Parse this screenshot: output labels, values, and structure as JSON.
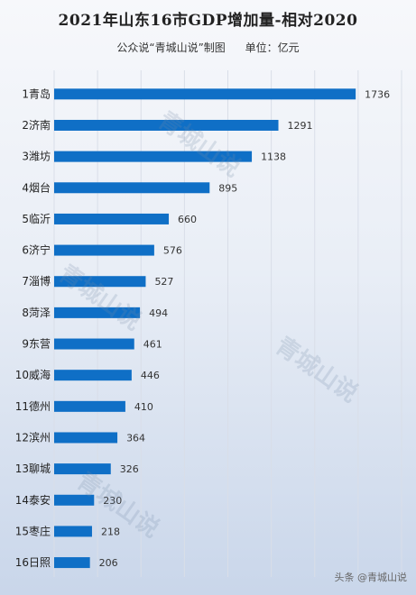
{
  "title": "2021年山东16市GDP增加量-相对2020",
  "subtitle": "公众说“青城山说”制图",
  "unit": "单位：亿元",
  "watermark": "青城山说",
  "footer": "头条 @青城山说",
  "colors": {
    "bar": "#0f6fc6",
    "grid": "#d9dee8"
  },
  "chart_data": {
    "type": "bar",
    "orientation": "horizontal",
    "categories": [
      "1青岛",
      "2济南",
      "3潍坊",
      "4烟台",
      "5临沂",
      "6济宁",
      "7淄博",
      "8菏泽",
      "9东营",
      "10威海",
      "11德州",
      "12滨州",
      "13聊城",
      "14泰安",
      "15枣庄",
      "16日照"
    ],
    "values": [
      1736,
      1291,
      1138,
      895,
      660,
      576,
      527,
      494,
      461,
      446,
      410,
      364,
      326,
      230,
      218,
      206
    ],
    "xlim": [
      0,
      2000
    ],
    "grid": true,
    "data_labels": true
  }
}
